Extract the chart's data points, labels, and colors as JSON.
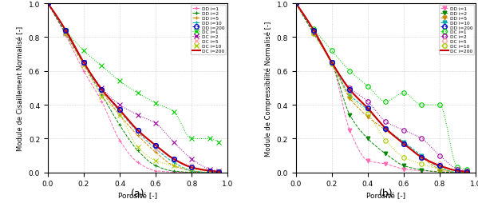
{
  "porosity_dd": [
    0.0,
    0.1,
    0.2,
    0.3,
    0.4,
    0.5,
    0.6,
    0.7,
    0.8,
    0.9,
    0.95
  ],
  "porosity_dc": [
    0.1,
    0.2,
    0.3,
    0.4,
    0.5,
    0.6,
    0.7,
    0.8,
    0.9,
    0.95
  ],
  "DD_i1_shear": [
    1.0,
    0.81,
    0.6,
    0.42,
    0.19,
    0.06,
    0.01,
    0.002,
    0.0,
    0.0,
    0.0
  ],
  "DD_i2_shear": [
    1.0,
    0.82,
    0.64,
    0.46,
    0.28,
    0.13,
    0.04,
    0.008,
    0.001,
    0.0,
    0.0
  ],
  "DD_i5_shear": [
    1.0,
    0.83,
    0.65,
    0.48,
    0.34,
    0.22,
    0.12,
    0.04,
    0.01,
    0.0,
    0.0
  ],
  "DD_i10_shear": [
    1.0,
    0.83,
    0.65,
    0.49,
    0.36,
    0.24,
    0.14,
    0.06,
    0.01,
    0.0,
    0.0
  ],
  "DD_i200_shear": [
    1.0,
    0.84,
    0.65,
    0.49,
    0.37,
    0.25,
    0.16,
    0.08,
    0.03,
    0.01,
    0.005
  ],
  "DC_i1_shear": [
    0.84,
    0.72,
    0.63,
    0.54,
    0.47,
    0.41,
    0.36,
    0.2,
    0.2,
    0.18
  ],
  "DC_i2_shear": [
    0.83,
    0.65,
    0.5,
    0.4,
    0.34,
    0.29,
    0.18,
    0.08,
    0.02,
    0.01
  ],
  "DC_i5_shear": [
    0.82,
    0.64,
    0.47,
    0.36,
    0.24,
    0.14,
    0.08,
    0.04,
    0.01,
    0.005
  ],
  "DC_i10_shear": [
    0.82,
    0.63,
    0.45,
    0.34,
    0.15,
    0.07,
    0.04,
    0.02,
    0.005,
    0.002
  ],
  "DD_i1_bulk": [
    1.0,
    0.82,
    0.65,
    0.25,
    0.07,
    0.05,
    0.02,
    0.01,
    0.005,
    0.0,
    0.0
  ],
  "DD_i2_bulk": [
    1.0,
    0.82,
    0.65,
    0.34,
    0.2,
    0.11,
    0.04,
    0.015,
    0.003,
    0.0,
    0.0
  ],
  "DD_i5_bulk": [
    1.0,
    0.83,
    0.65,
    0.44,
    0.33,
    0.25,
    0.17,
    0.09,
    0.02,
    0.0,
    0.0
  ],
  "DD_i10_bulk": [
    1.0,
    0.83,
    0.65,
    0.46,
    0.37,
    0.26,
    0.18,
    0.1,
    0.03,
    0.0,
    0.0
  ],
  "DD_i200_bulk": [
    1.0,
    0.84,
    0.65,
    0.49,
    0.38,
    0.26,
    0.17,
    0.09,
    0.04,
    0.01,
    0.005
  ],
  "DC_i1_bulk": [
    0.85,
    0.72,
    0.6,
    0.51,
    0.42,
    0.47,
    0.4,
    0.4,
    0.03,
    0.02
  ],
  "DC_i2_bulk": [
    0.83,
    0.65,
    0.5,
    0.42,
    0.3,
    0.25,
    0.2,
    0.1,
    0.02,
    0.01
  ],
  "DC_i5_bulk": [
    0.82,
    0.65,
    0.48,
    0.38,
    0.26,
    0.17,
    0.09,
    0.05,
    0.01,
    0.005
  ],
  "DC_i10_bulk": [
    0.82,
    0.64,
    0.45,
    0.35,
    0.19,
    0.09,
    0.05,
    0.02,
    0.005,
    0.002
  ],
  "xlabel": "Porosité [-]",
  "ylabel_a": "Module de Cisaillement Normalisé [-]",
  "ylabel_b": "Module de Compressibilité Normalisé [-]",
  "label_a": "(a)",
  "label_b": "(b)",
  "colors": {
    "DD_i1": "#ff69b4",
    "DD_i2": "#008800",
    "DD_i5": "#cc8800",
    "DD_i10": "#00aaaa",
    "DD_i200": "#0000cc",
    "DC_i1": "#00cc00",
    "DC_i2": "#990099",
    "DC_i5": "#ffaaaa",
    "DC_i10": "#aacc00",
    "DC_i200": "#cc0000"
  }
}
